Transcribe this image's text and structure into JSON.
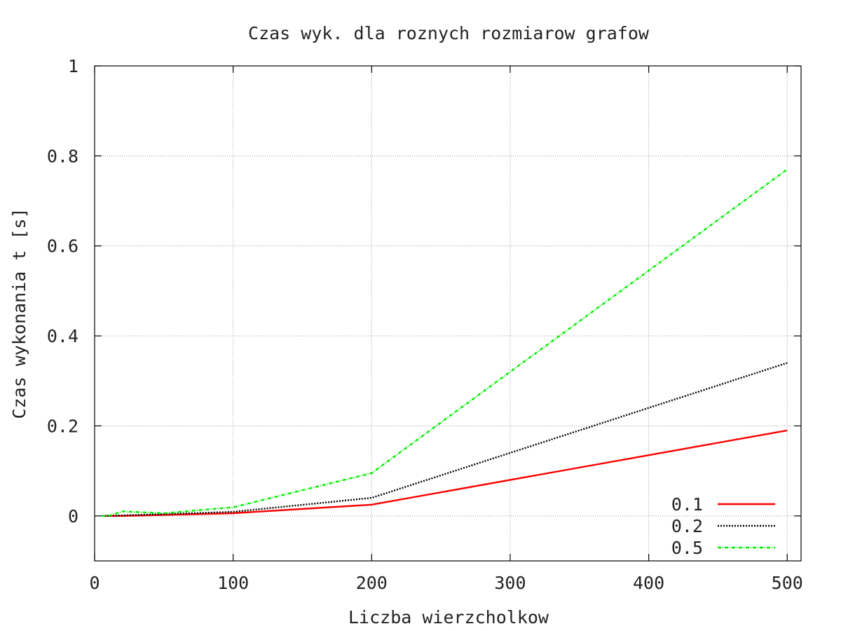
{
  "chart_data": {
    "type": "line",
    "title": "Czas wyk. dla roznych rozmiarow grafow",
    "xlabel": "Liczba wierzcholkow",
    "ylabel": "Czas wykonania t [s]",
    "xlim": [
      0,
      510
    ],
    "ylim": [
      -0.1,
      1
    ],
    "xticks": [
      0,
      100,
      200,
      300,
      400,
      500
    ],
    "xtick_labels": [
      "0",
      "100",
      "200",
      "300",
      "400",
      "500"
    ],
    "yticks": [
      0,
      0.2,
      0.4,
      0.6,
      0.8,
      1
    ],
    "ytick_labels": [
      "0",
      "0.2",
      "0.4",
      "0.6",
      "0.8",
      "1"
    ],
    "grid": true,
    "legend_position": "bottom-right",
    "series": [
      {
        "name": "0.1",
        "color": "#ff0000",
        "dash": "solid",
        "x": [
          5,
          10,
          20,
          50,
          100,
          200,
          500
        ],
        "y": [
          0,
          0,
          0,
          0.002,
          0.006,
          0.025,
          0.19
        ]
      },
      {
        "name": "0.2",
        "color": "#000000",
        "dash": "dotted",
        "x": [
          5,
          10,
          20,
          50,
          100,
          200,
          500
        ],
        "y": [
          0,
          0,
          0.001,
          0.004,
          0.009,
          0.04,
          0.34
        ]
      },
      {
        "name": "0.5",
        "color": "#00ee00",
        "dash": "dashdot",
        "x": [
          5,
          10,
          20,
          50,
          100,
          200,
          500
        ],
        "y": [
          0,
          0,
          0.01,
          0.006,
          0.019,
          0.095,
          0.77
        ]
      }
    ]
  }
}
